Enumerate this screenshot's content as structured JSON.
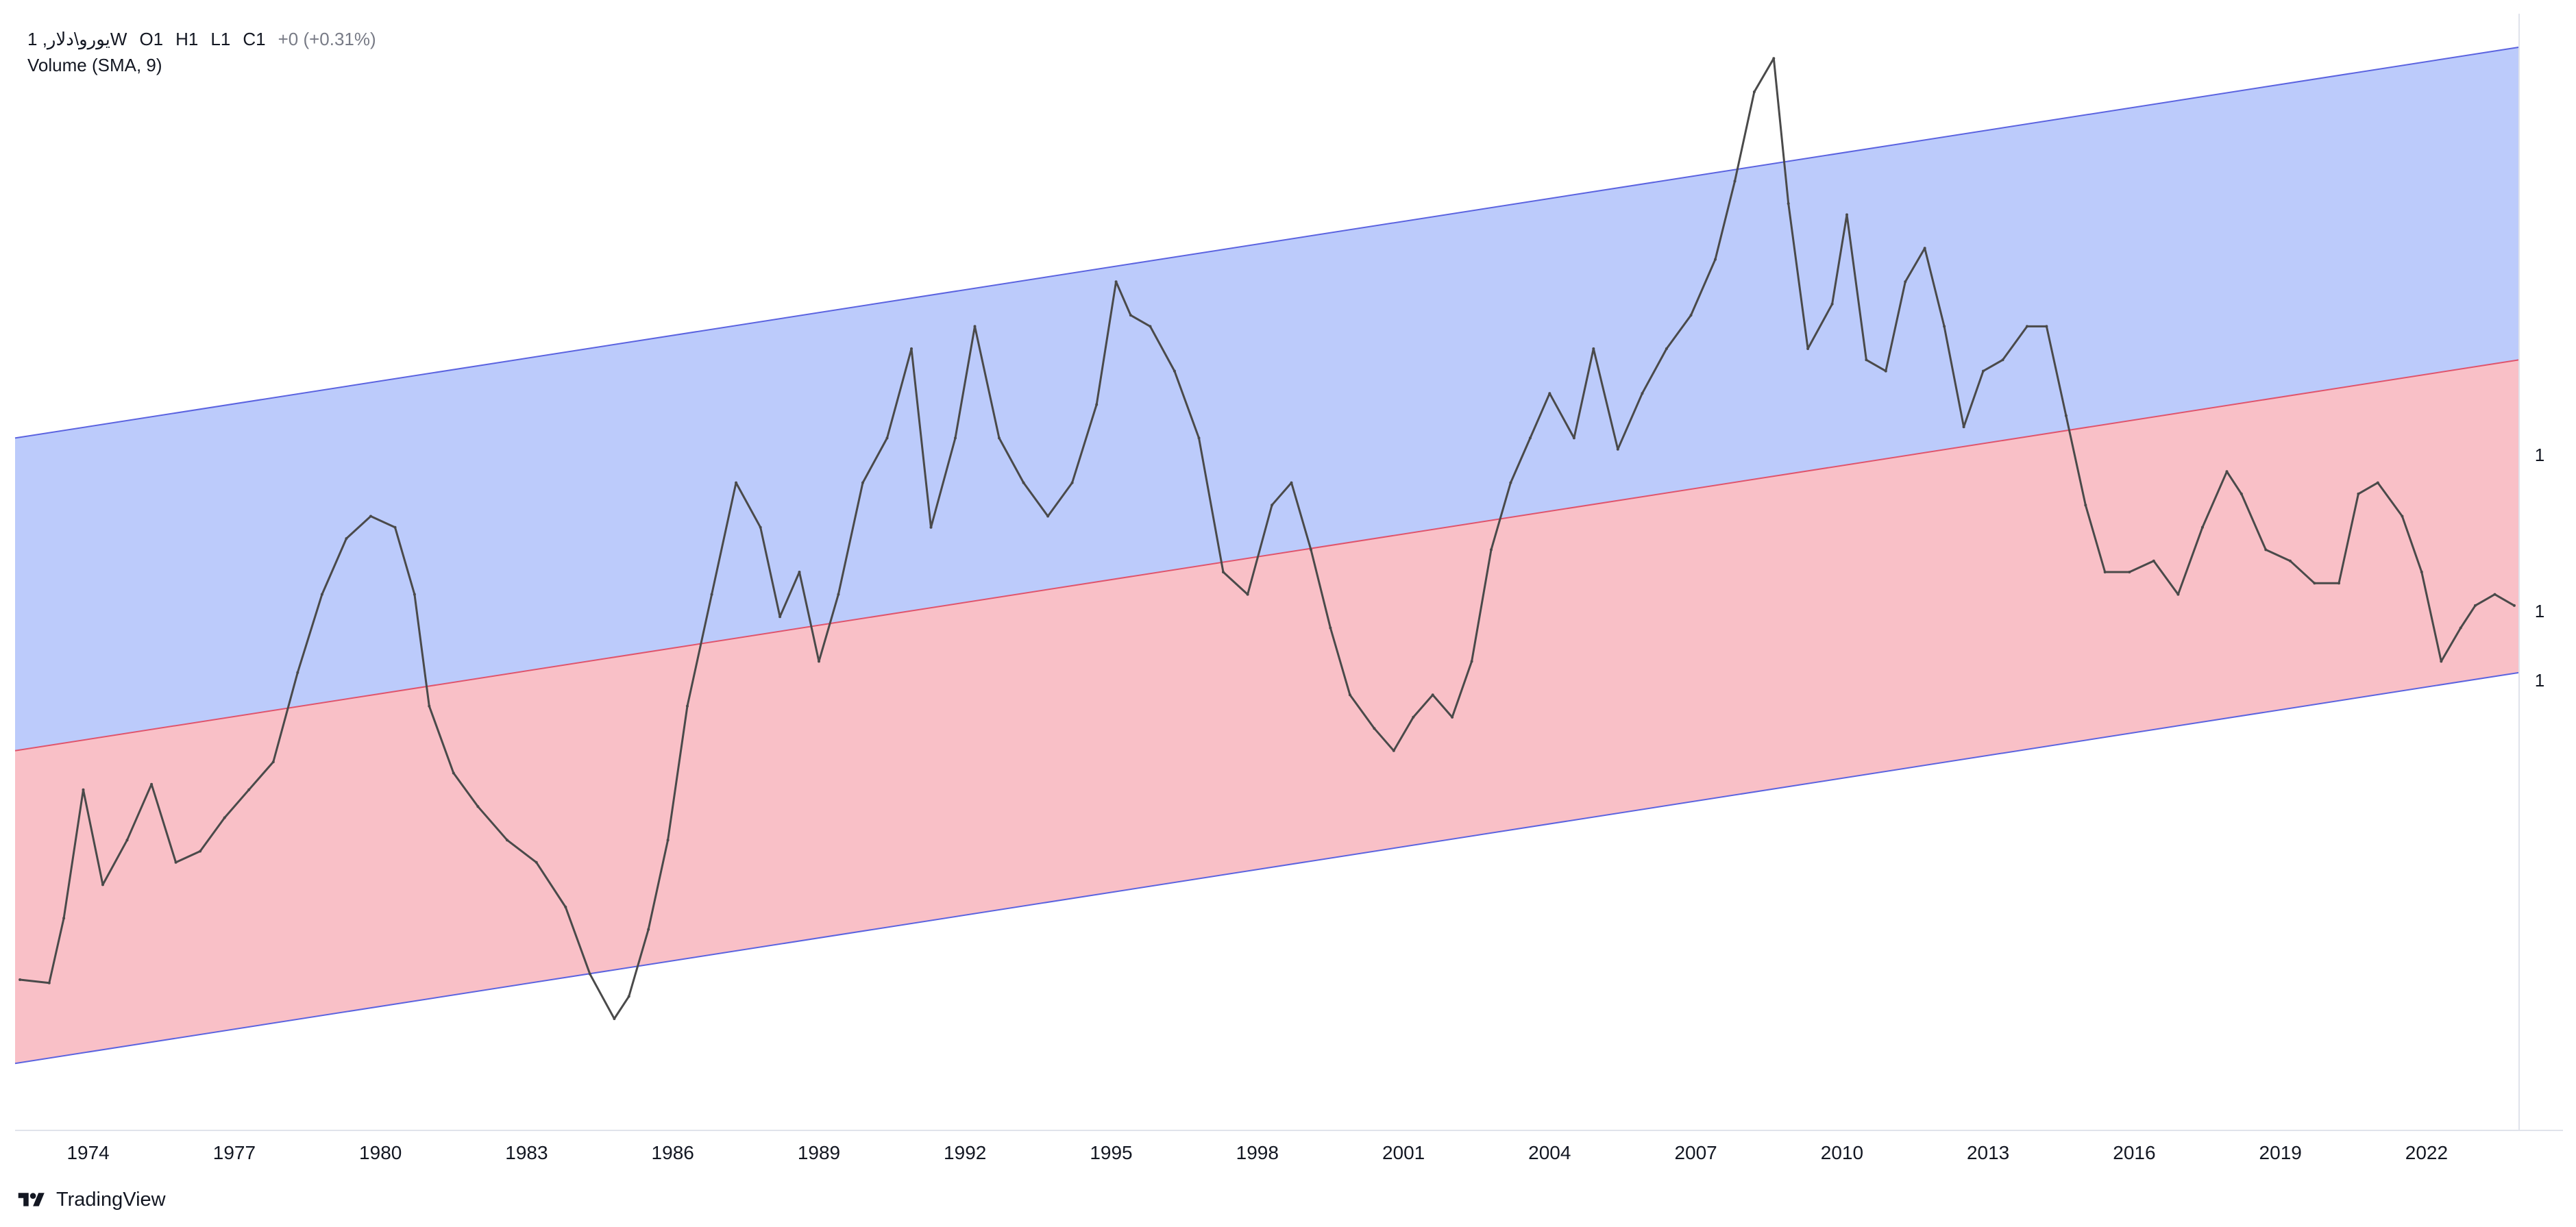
{
  "legend": {
    "symbol": "یورو\\دلار, 1W",
    "open_label": "O",
    "open_value": "1",
    "high_label": "H",
    "high_value": "1",
    "low_label": "L",
    "low_value": "1",
    "close_label": "C",
    "close_value": "1",
    "change": "+0 (+0.31%)",
    "indicator": "Volume (SMA, 9)"
  },
  "branding": {
    "name": "TradingView"
  },
  "colors": {
    "upper_band_fill": "#bccbfb",
    "lower_band_fill": "#f9c0c7",
    "channel_line": "#5b63e0",
    "mid_line": "#e0546c",
    "price_line": "#4a4a4a",
    "axis_text": "#131722",
    "grid": "#e0e3eb"
  },
  "chart_data": {
    "type": "line",
    "title": "",
    "xlabel": "",
    "ylabel": "",
    "x_ticks": [
      "1974",
      "1977",
      "1980",
      "1983",
      "1986",
      "1989",
      "1992",
      "1995",
      "1998",
      "2001",
      "2004",
      "2007",
      "2010",
      "2013",
      "2016",
      "2019",
      "2022"
    ],
    "y_ticks": [
      "1",
      "1",
      "1"
    ],
    "xlim": [
      1972.5,
      2023.9
    ],
    "ylim": [
      0,
      100
    ],
    "channel": {
      "upper_start": 62,
      "upper_end": 97,
      "mid_start": 34,
      "mid_end": 69,
      "lower_start": 6,
      "lower_end": 41
    },
    "series": [
      {
        "x": [
          1972.6,
          1973.2,
          1973.5,
          1973.9,
          1974.3,
          1974.8,
          1975.3,
          1975.8,
          1976.3,
          1976.8,
          1977.3,
          1977.8,
          1978.3,
          1978.8,
          1979.3,
          1979.8,
          1980.3,
          1980.7,
          1981.0,
          1981.5,
          1982.0,
          1982.6,
          1983.2,
          1983.8,
          1984.3,
          1984.8,
          1985.1,
          1985.5,
          1985.9,
          1986.3,
          1986.8,
          1987.3,
          1987.8,
          1988.2,
          1988.6,
          1989.0,
          1989.4,
          1989.9,
          1990.4,
          1990.9,
          1991.3,
          1991.8,
          1992.2,
          1992.7,
          1993.2,
          1993.7,
          1994.2,
          1994.7,
          1995.1,
          1995.4,
          1995.8,
          1996.3,
          1996.8,
          1997.3,
          1997.8,
          1998.3,
          1998.7,
          1999.1,
          1999.5,
          1999.9,
          2000.4,
          2000.8,
          2001.2,
          2001.6,
          2002.0,
          2002.4,
          2002.8,
          2003.2,
          2003.6,
          2004.0,
          2004.5,
          2004.9,
          2005.4,
          2005.9,
          2006.4,
          2006.9,
          2007.4,
          2007.8,
          2008.2,
          2008.6,
          2008.9,
          2009.3,
          2009.8,
          2010.1,
          2010.5,
          2010.9,
          2011.3,
          2011.7,
          2012.1,
          2012.5,
          2012.9,
          2013.3,
          2013.8,
          2014.2,
          2014.6,
          2015.0,
          2015.4,
          2015.9,
          2016.4,
          2016.9,
          2017.4,
          2017.9,
          2018.2,
          2018.7,
          2019.2,
          2019.7,
          2020.2,
          2020.6,
          2021.0,
          2021.5,
          2021.9,
          2022.3,
          2022.7,
          2023.0,
          2023.4,
          2023.8
        ],
        "values": [
          13.5,
          13.2,
          19.0,
          30.5,
          22.0,
          26.0,
          31.0,
          24.0,
          25.0,
          28.0,
          30.5,
          33.0,
          41.0,
          48.0,
          53.0,
          55.0,
          54.0,
          48.0,
          38.0,
          32.0,
          29.0,
          26.0,
          24.0,
          20.0,
          14.0,
          10.0,
          12.0,
          18.0,
          26.0,
          38.0,
          48.0,
          58.0,
          54.0,
          46.0,
          50.0,
          42.0,
          48.0,
          58.0,
          62.0,
          70.0,
          54.0,
          62.0,
          72.0,
          62.0,
          58.0,
          55.0,
          58.0,
          65.0,
          76.0,
          73.0,
          72.0,
          68.0,
          62.0,
          50.0,
          48.0,
          56.0,
          58.0,
          52.0,
          45.0,
          39.0,
          36.0,
          34.0,
          37.0,
          39.0,
          37.0,
          42.0,
          52.0,
          58.0,
          62.0,
          66.0,
          62.0,
          70.0,
          61.0,
          66.0,
          70.0,
          73.0,
          78.0,
          85.0,
          93.0,
          96.0,
          83.0,
          70.0,
          74.0,
          82.0,
          69.0,
          68.0,
          76.0,
          79.0,
          72.0,
          63.0,
          68.0,
          69.0,
          72.0,
          72.0,
          64.0,
          56.0,
          50.0,
          50.0,
          51.0,
          48.0,
          54.0,
          59.0,
          57.0,
          52.0,
          51.0,
          49.0,
          49.0,
          57.0,
          58.0,
          55.0,
          50.0,
          42.0,
          45.0,
          47.0,
          48.0,
          47.0
        ]
      }
    ]
  }
}
